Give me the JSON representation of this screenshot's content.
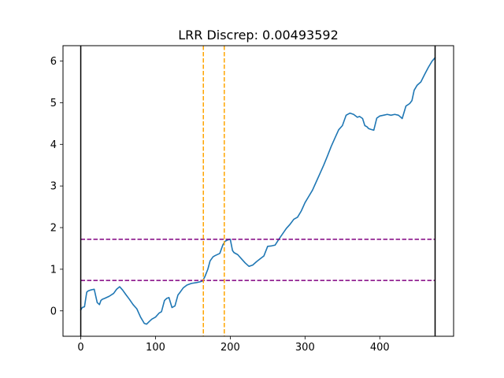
{
  "chart_data": {
    "type": "line",
    "title": "LRR Discrep: 0.00493592",
    "xlabel": "",
    "ylabel": "",
    "xlim": [
      -23.75,
      498.75
    ],
    "ylim": [
      -0.61,
      6.37
    ],
    "xticks": [
      0,
      100,
      200,
      300,
      400
    ],
    "yticks": [
      0,
      1,
      2,
      3,
      4,
      5,
      6
    ],
    "grid": false,
    "series": [
      {
        "color": "#1f77b4",
        "x": [
          0,
          2,
          5,
          8,
          10,
          13,
          18,
          22,
          25,
          27,
          29,
          32,
          38,
          44,
          48,
          52,
          56,
          60,
          65,
          70,
          75,
          80,
          85,
          88,
          92,
          95,
          100,
          105,
          108,
          112,
          115,
          118,
          122,
          126,
          130,
          133,
          137,
          142,
          148,
          155,
          160,
          163,
          166,
          170,
          173,
          177,
          180,
          186,
          190,
          193,
          196,
          200,
          203,
          205,
          210,
          215,
          220,
          225,
          230,
          235,
          240,
          245,
          250,
          255,
          260,
          265,
          270,
          275,
          280,
          285,
          290,
          295,
          300,
          305,
          310,
          315,
          320,
          325,
          330,
          335,
          340,
          345,
          350,
          355,
          360,
          365,
          370,
          373,
          377,
          380,
          383,
          385,
          388,
          392,
          396,
          400,
          405,
          410,
          415,
          420,
          425,
          430,
          435,
          440,
          443,
          446,
          450,
          455,
          460,
          465,
          470,
          474
        ],
        "y": [
          0.02,
          0.08,
          0.1,
          0.45,
          0.48,
          0.5,
          0.52,
          0.2,
          0.15,
          0.25,
          0.28,
          0.3,
          0.35,
          0.42,
          0.52,
          0.58,
          0.5,
          0.4,
          0.28,
          0.15,
          0.05,
          -0.15,
          -0.3,
          -0.32,
          -0.25,
          -0.2,
          -0.15,
          -0.05,
          -0.02,
          0.25,
          0.3,
          0.32,
          0.08,
          0.12,
          0.38,
          0.45,
          0.55,
          0.62,
          0.66,
          0.68,
          0.7,
          0.72,
          0.82,
          1.0,
          1.2,
          1.3,
          1.33,
          1.38,
          1.58,
          1.67,
          1.7,
          1.72,
          1.45,
          1.4,
          1.35,
          1.25,
          1.15,
          1.07,
          1.1,
          1.18,
          1.25,
          1.32,
          1.55,
          1.56,
          1.58,
          1.72,
          1.85,
          1.98,
          2.08,
          2.2,
          2.25,
          2.4,
          2.6,
          2.75,
          2.9,
          3.1,
          3.3,
          3.5,
          3.72,
          3.95,
          4.15,
          4.35,
          4.45,
          4.7,
          4.75,
          4.72,
          4.65,
          4.67,
          4.62,
          4.45,
          4.42,
          4.38,
          4.36,
          4.34,
          4.63,
          4.68,
          4.7,
          4.72,
          4.7,
          4.72,
          4.7,
          4.62,
          4.92,
          4.98,
          5.05,
          5.3,
          5.42,
          5.5,
          5.68,
          5.85,
          6.0,
          6.08
        ]
      }
    ],
    "vlines": [
      {
        "x": 0,
        "color": "#000000",
        "style": "solid"
      },
      {
        "x": 474,
        "color": "#000000",
        "style": "solid"
      },
      {
        "x": 164,
        "color": "#ffa500",
        "style": "dashed"
      },
      {
        "x": 192,
        "color": "#ffa500",
        "style": "dashed"
      }
    ],
    "hlines": [
      {
        "y": 0.73,
        "color": "#800080",
        "style": "dashed"
      },
      {
        "y": 1.72,
        "color": "#800080",
        "style": "dashed"
      }
    ]
  }
}
